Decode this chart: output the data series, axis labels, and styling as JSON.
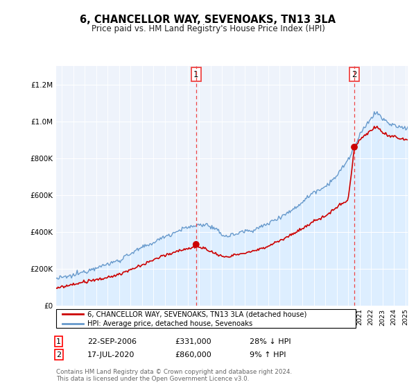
{
  "title": "6, CHANCELLOR WAY, SEVENOAKS, TN13 3LA",
  "subtitle": "Price paid vs. HM Land Registry's House Price Index (HPI)",
  "footer": "Contains HM Land Registry data © Crown copyright and database right 2024.\nThis data is licensed under the Open Government Licence v3.0.",
  "legend_house": "6, CHANCELLOR WAY, SEVENOAKS, TN13 3LA (detached house)",
  "legend_hpi": "HPI: Average price, detached house, Sevenoaks",
  "transaction1_date": "22-SEP-2006",
  "transaction1_price": "£331,000",
  "transaction1_hpi": "28% ↓ HPI",
  "transaction2_date": "17-JUL-2020",
  "transaction2_price": "£860,000",
  "transaction2_hpi": "9% ↑ HPI",
  "ylim": [
    0,
    1300000
  ],
  "xlim_left": 1994.5,
  "xlim_right": 2025.2,
  "house_color": "#cc0000",
  "hpi_color": "#6699cc",
  "hpi_fill_color": "#ddeeff",
  "vline_color": "#ee4444",
  "background_color": "#eef3fb",
  "transaction1_x": 2006.72,
  "transaction2_x": 2020.54,
  "transaction1_y": 331000,
  "transaction2_y": 860000
}
